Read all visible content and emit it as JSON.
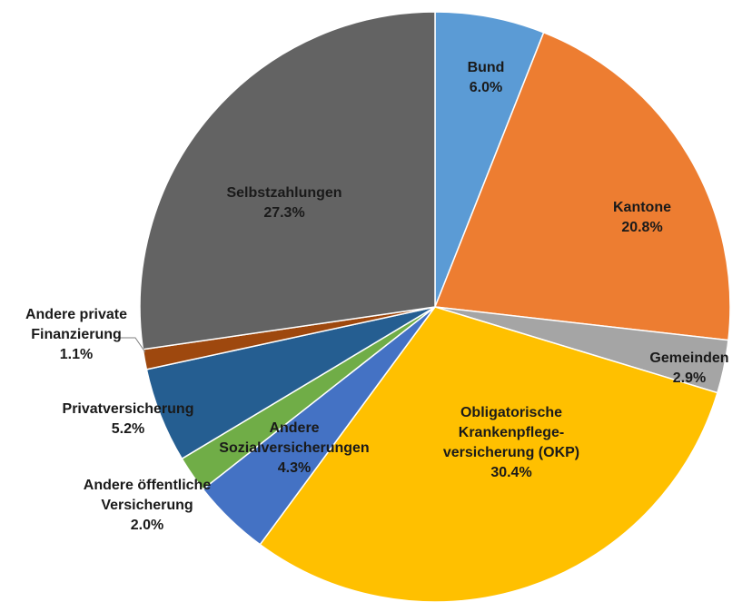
{
  "chart_data": {
    "type": "pie",
    "title": "",
    "start_angle_deg": 0,
    "direction": "clockwise",
    "slices": [
      {
        "label_lines": [
          "Bund"
        ],
        "value": 6.0,
        "value_label": "6.0%",
        "color": "#5B9BD5"
      },
      {
        "label_lines": [
          "Kantone"
        ],
        "value": 20.8,
        "value_label": "20.8%",
        "color": "#ED7D31"
      },
      {
        "label_lines": [
          "Gemeinden"
        ],
        "value": 2.9,
        "value_label": "2.9%",
        "color": "#A5A5A5"
      },
      {
        "label_lines": [
          "Obligatorische",
          "Krankenpflege-",
          "versicherung (OKP)"
        ],
        "value": 30.4,
        "value_label": "30.4%",
        "color": "#FFC000"
      },
      {
        "label_lines": [
          "Andere",
          "Sozialversicherungen"
        ],
        "value": 4.3,
        "value_label": "4.3%",
        "color": "#4472C4"
      },
      {
        "label_lines": [
          "Andere öffentliche",
          "Versicherung"
        ],
        "value": 2.0,
        "value_label": "2.0%",
        "color": "#70AD47"
      },
      {
        "label_lines": [
          "Privatversicherung"
        ],
        "value": 5.2,
        "value_label": "5.2%",
        "color": "#255E91"
      },
      {
        "label_lines": [
          "Andere private",
          "Finanzierung"
        ],
        "value": 1.1,
        "value_label": "1.1%",
        "color": "#9E480E"
      },
      {
        "label_lines": [
          "Selbstzahlungen"
        ],
        "value": 27.3,
        "value_label": "27.3%",
        "color": "#636363"
      }
    ]
  }
}
